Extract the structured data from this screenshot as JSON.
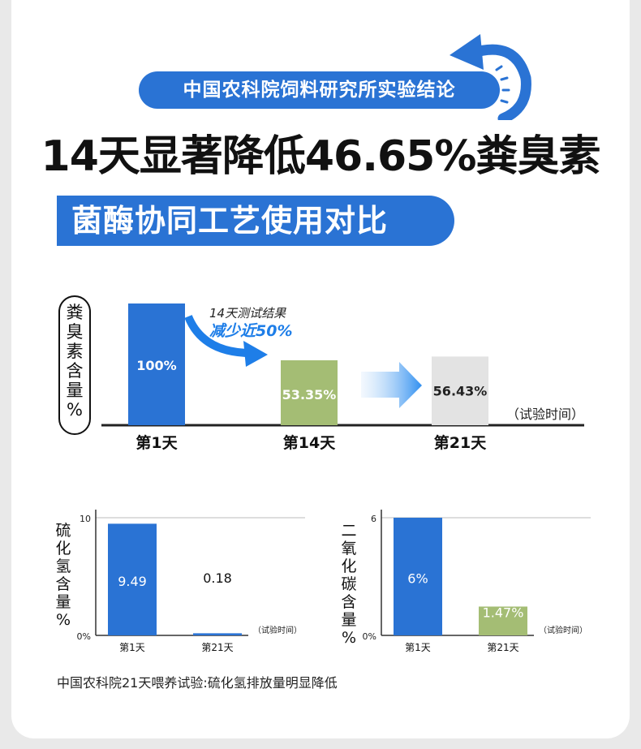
{
  "header": {
    "pill_text": "中国农科院饲料研究所实验结论",
    "headline": "14天显著降低46.65%粪臭素",
    "banner": "菌酶协同工艺使用对比"
  },
  "colors": {
    "accent": "#2a73d4",
    "green": "#a4bd74",
    "gray": "#e3e3e3"
  },
  "chart_data": [
    {
      "type": "bar",
      "ylabel": "粪臭素含量%",
      "xlabel": "（试验时间）",
      "categories": [
        "第1天",
        "第14天",
        "第21天"
      ],
      "values": [
        100,
        53.35,
        56.43
      ],
      "data_labels": [
        "100%",
        "53.35%",
        "56.43%"
      ],
      "annotation_line1": "14天测试结果",
      "annotation_line2": "减少近50%"
    },
    {
      "type": "bar",
      "ylabel": "硫化氢含量%",
      "xlabel": "（试验时间）",
      "categories": [
        "第1天",
        "第21天"
      ],
      "values": [
        9.49,
        0.18
      ],
      "data_labels": [
        "9.49",
        "0.18"
      ],
      "ylim": [
        0,
        10
      ],
      "y_ticks": [
        "0%",
        "10"
      ],
      "grid": true
    },
    {
      "type": "bar",
      "ylabel": "二氧化碳含量%",
      "xlabel": "（试验时间）",
      "categories": [
        "第1天",
        "第21天"
      ],
      "values": [
        6,
        1.47
      ],
      "data_labels": [
        "6%",
        "1.47%"
      ],
      "ylim": [
        0,
        6
      ],
      "y_ticks": [
        "0%",
        "6"
      ],
      "grid": true
    }
  ],
  "caption": "中国农科院21天喂养试验:硫化氢排放量明显降低"
}
